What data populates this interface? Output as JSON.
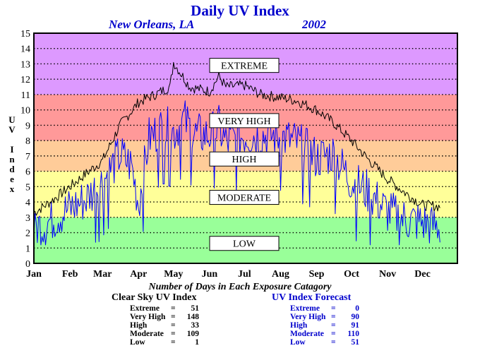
{
  "header": {
    "title": "Daily UV Index",
    "location": "New Orleans, LA",
    "year": "2002"
  },
  "y_axis_label": [
    "U",
    "V",
    "",
    "I",
    "n",
    "d",
    "e",
    "x"
  ],
  "footer": {
    "title": "Number of Days in Each Exposure Catagory",
    "clear_sky": {
      "title": "Clear Sky UV Index",
      "rows": [
        {
          "label": "Extreme",
          "value": "51"
        },
        {
          "label": "Very High",
          "value": "148"
        },
        {
          "label": "High",
          "value": "33"
        },
        {
          "label": "Moderate",
          "value": "109"
        },
        {
          "label": "Low",
          "value": "1"
        }
      ]
    },
    "forecast": {
      "title": "UV Index Forecast",
      "rows": [
        {
          "label": "Extreme",
          "value": "0"
        },
        {
          "label": "Very High",
          "value": "90"
        },
        {
          "label": "High",
          "value": "91"
        },
        {
          "label": "Moderate",
          "value": "110"
        },
        {
          "label": "Low",
          "value": "51"
        }
      ]
    }
  },
  "chart_data": {
    "type": "line",
    "ylim": [
      0,
      15
    ],
    "y_ticks": [
      "0",
      "1",
      "2",
      "3",
      "4",
      "5",
      "6",
      "7",
      "8",
      "9",
      "10",
      "11",
      "12",
      "13",
      "14",
      "15"
    ],
    "x_tick_labels": [
      "Jan",
      "Feb",
      "Mar",
      "Apr",
      "May",
      "Jun",
      "Jul",
      "Aug",
      "Sep",
      "Oct",
      "Nov",
      "Dec"
    ],
    "grid": true,
    "bands": [
      {
        "label": "LOW",
        "from": 0,
        "to": 3,
        "color": "#99ff99"
      },
      {
        "label": "MODERATE",
        "from": 3,
        "to": 6,
        "color": "#ffff99"
      },
      {
        "label": "HIGH",
        "from": 6,
        "to": 8,
        "color": "#ffcc99"
      },
      {
        "label": "VERY HIGH",
        "from": 8,
        "to": 11,
        "color": "#ff9999"
      },
      {
        "label": "EXTREME",
        "from": 11,
        "to": 15,
        "color": "#dd99ff"
      }
    ],
    "band_label_values": {
      "EXTREME": 12.9,
      "VERY HIGH": 9.3,
      "HIGH": 6.8,
      "MODERATE": 4.3,
      "LOW": 1.3
    },
    "series": [
      {
        "name": "Clear Sky UV Index",
        "color": "#000000",
        "x_days": [
          1,
          15,
          32,
          45,
          60,
          75,
          91,
          105,
          118,
          121,
          135,
          152,
          160,
          166,
          182,
          196,
          213,
          227,
          244,
          258,
          274,
          288,
          305,
          320,
          335,
          350
        ],
        "values": [
          3.3,
          4.0,
          5.0,
          5.8,
          6.7,
          9.0,
          10.5,
          11.0,
          11.5,
          13.1,
          11.5,
          11.2,
          12.2,
          11.5,
          11.6,
          11.0,
          10.8,
          10.6,
          10.0,
          9.2,
          8.0,
          6.8,
          5.5,
          4.6,
          3.8,
          3.7
        ]
      },
      {
        "name": "UV Index Forecast",
        "color": "#0000ff",
        "x_days": [
          1,
          10,
          20,
          32,
          45,
          60,
          75,
          85,
          91,
          100,
          112,
          121,
          130,
          140,
          152,
          160,
          166,
          182,
          196,
          213,
          227,
          244,
          258,
          274,
          288,
          305,
          320,
          335,
          350
        ],
        "values": [
          2.5,
          2.7,
          3.2,
          3.7,
          4.3,
          5.5,
          7.2,
          6.5,
          4.0,
          8.3,
          9.0,
          8.7,
          9.5,
          8.5,
          8.5,
          9.0,
          8.0,
          8.5,
          8.5,
          8.4,
          8.0,
          7.0,
          7.3,
          5.5,
          4.8,
          3.5,
          3.0,
          2.8,
          2.5
        ]
      }
    ]
  }
}
